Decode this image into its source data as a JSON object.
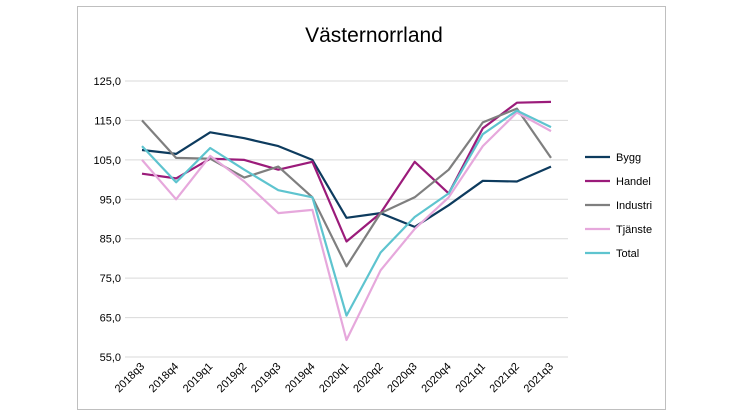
{
  "chart_data": {
    "type": "line",
    "title": "Västernorrland",
    "xlabel": "",
    "ylabel": "",
    "ylim": [
      55,
      125
    ],
    "yticks": [
      "55,0",
      "65,0",
      "75,0",
      "85,0",
      "95,0",
      "105,0",
      "115,0",
      "125,0"
    ],
    "grid": "horizontal",
    "legend_position": "right",
    "categories": [
      "2018q3",
      "2018q4",
      "2019q1",
      "2019q2",
      "2019q3",
      "2019q4",
      "2020q1",
      "2020q2",
      "2020q3",
      "2020q4",
      "2021q1",
      "2021q2",
      "2021q3"
    ],
    "series": [
      {
        "name": "Bygg",
        "color": "#0d3b5e",
        "values": [
          107.5,
          106.5,
          112.0,
          110.5,
          108.5,
          105.0,
          90.3,
          91.5,
          88.0,
          93.5,
          99.7,
          99.5,
          103.3
        ]
      },
      {
        "name": "Handel",
        "color": "#9b1b7a",
        "values": [
          101.5,
          100.3,
          105.3,
          105.0,
          102.5,
          104.5,
          84.3,
          91.5,
          104.5,
          96.5,
          113.0,
          119.5,
          119.7
        ]
      },
      {
        "name": "Industri",
        "color": "#7f7f7f",
        "values": [
          115.0,
          105.5,
          105.3,
          100.5,
          103.3,
          95.5,
          78.0,
          91.5,
          95.5,
          102.5,
          114.5,
          118.0,
          105.5
        ]
      },
      {
        "name": "Tjänste",
        "color": "#e6a8dc",
        "values": [
          105.0,
          95.0,
          106.0,
          99.5,
          91.5,
          92.3,
          59.3,
          77.0,
          87.5,
          95.5,
          108.5,
          117.0,
          112.3
        ]
      },
      {
        "name": "Total",
        "color": "#5ec4cf",
        "values": [
          108.5,
          99.3,
          108.0,
          102.5,
          97.3,
          95.5,
          65.5,
          81.5,
          90.5,
          96.5,
          111.5,
          117.5,
          113.3
        ]
      }
    ]
  }
}
